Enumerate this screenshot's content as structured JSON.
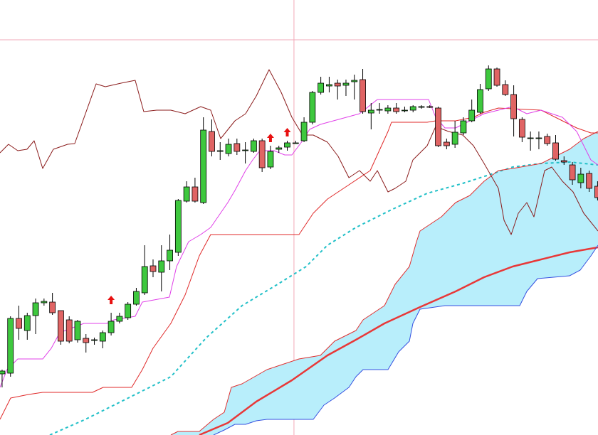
{
  "chart_data": {
    "type": "candlestick",
    "xlim": [
      -0.25,
      71.05
    ],
    "ylim": [
      0,
      612
    ],
    "candles": {
      "up_color": "#3ec83e",
      "down_color": "#e06464",
      "outline": "#000000",
      "open": [
        86,
        87,
        164,
        147,
        168,
        186,
        187,
        175,
        162,
        134,
        136,
        134,
        132,
        144,
        160,
        165,
        184,
        200,
        238,
        229,
        245,
        257,
        329,
        349,
        327,
        427,
        399,
        396,
        410,
        401,
        399,
        414,
        377,
        402,
        405,
        411,
        414,
        440,
        482,
        491,
        495,
        492,
        497,
        500,
        453,
        457,
        456,
        460,
        456,
        457,
        461,
        462,
        460,
        412,
        409,
        425,
        442,
        454,
        487,
        515,
        493,
        479,
        444,
        418,
        417,
        420,
        411,
        386,
        380,
        355,
        368,
        350
      ],
      "high": [
        92,
        167,
        182,
        172,
        192,
        192,
        200,
        175,
        167,
        162,
        142,
        137,
        147,
        172,
        172,
        187,
        207,
        267,
        247,
        267,
        282,
        332,
        357,
        362,
        447,
        444,
        412,
        417,
        417,
        412,
        417,
        417,
        407,
        407,
        414,
        414,
        447,
        484,
        504,
        504,
        500,
        500,
        507,
        515,
        467,
        467,
        464,
        467,
        462,
        464,
        464,
        464,
        462,
        417,
        442,
        447,
        472,
        494,
        520,
        517,
        499,
        492,
        447,
        427,
        427,
        424,
        422,
        392,
        384,
        376,
        372,
        357
      ],
      "low": [
        67,
        82,
        134,
        134,
        142,
        182,
        169,
        127,
        129,
        130,
        116,
        127,
        122,
        140,
        157,
        162,
        182,
        197,
        222,
        202,
        232,
        252,
        327,
        327,
        325,
        392,
        387,
        392,
        394,
        382,
        397,
        370,
        374,
        397,
        400,
        410,
        412,
        437,
        479,
        482,
        472,
        477,
        472,
        452,
        430,
        452,
        452,
        452,
        454,
        454,
        459,
        460,
        405,
        402,
        404,
        422,
        440,
        452,
        484,
        490,
        477,
        420,
        412,
        400,
        402,
        407,
        386,
        380,
        352,
        347,
        342,
        330
      ],
      "close": [
        90,
        164,
        150,
        168,
        186,
        188,
        172,
        132,
        132,
        160,
        130,
        134,
        144,
        160,
        167,
        184,
        202,
        237,
        230,
        245,
        260,
        330,
        349,
        329,
        429,
        399,
        400,
        409,
        399,
        401,
        414,
        376,
        399,
        404,
        411,
        411,
        440,
        482,
        495,
        493,
        491,
        495,
        499,
        455,
        457,
        458,
        460,
        455,
        457,
        462,
        462,
        461,
        407,
        407,
        426,
        442,
        457,
        486,
        515,
        492,
        479,
        445,
        419,
        418,
        418,
        410,
        388,
        384,
        359,
        367,
        347,
        334
      ]
    },
    "cloud": {
      "fill": "#b8eefb",
      "span_a": {
        "color": "#e03030",
        "width": 1,
        "x": [
          20.12,
          20.97,
          23.51,
          25.21,
          26.49,
          27.33,
          28.61,
          31.58,
          32.85,
          35.4,
          37.95,
          39.64,
          42.19,
          43.04,
          45.59,
          46.86,
          48.56,
          49.41,
          49.83,
          52.38,
          54.07,
          55.77,
          57.47,
          59.17,
          60.87,
          64.26,
          65.96,
          67.66,
          69.35,
          71.05
        ],
        "values": [
          0,
          5,
          5,
          22,
          32,
          67,
          72,
          92,
          97,
          107,
          112,
          132,
          147,
          162,
          182,
          212,
          237,
          272,
          287,
          307,
          327,
          337,
          357,
          372,
          375,
          382,
          392,
          402,
          417,
          427
        ]
      },
      "span_b": {
        "color": "#3550e0",
        "width": 1,
        "x": [
          25.21,
          26.49,
          27.76,
          29.03,
          30.31,
          31.58,
          37.1,
          38.37,
          39.64,
          41.35,
          42.19,
          43.04,
          46.01,
          47.28,
          48.56,
          48.98,
          49.83,
          52.8,
          61.72,
          62.56,
          63.84,
          67.66,
          68.93,
          70.2,
          71.05
        ],
        "values": [
          0,
          7,
          15,
          15,
          20,
          22,
          22,
          42,
          52,
          67,
          82,
          92,
          92,
          117,
          132,
          157,
          177,
          182,
          182,
          202,
          220,
          224,
          232,
          252,
          267
        ]
      }
    },
    "lines": [
      {
        "color": "#22c0c8",
        "width": 2,
        "dash": true,
        "x": [
          5.69,
          9.93,
          15.03,
          20.12,
          24.36,
          28.61,
          32.85,
          36.25,
          38.79,
          42.19,
          46.43,
          50.68,
          54.92,
          58.32,
          60.87,
          64.26,
          67.66,
          71.05
        ],
        "values": [
          0,
          22,
          52,
          82,
          137,
          182,
          212,
          237,
          267,
          292,
          317,
          340,
          354,
          367,
          377,
          382,
          384,
          380
        ]
      },
      {
        "color": "#e83838",
        "width": 2.5,
        "dash": false,
        "x": [
          23.51,
          26.91,
          30.31,
          34.55,
          38.79,
          42.19,
          45.59,
          49.83,
          54.07,
          57.47,
          60.87,
          64.26,
          67.66,
          71.05
        ],
        "values": [
          0,
          17,
          47,
          77,
          112,
          134,
          157,
          180,
          202,
          222,
          237,
          247,
          257,
          264
        ]
      },
      {
        "color": "#e02a2a",
        "width": 1,
        "dash": false,
        "x": [
          -0.25,
          1.02,
          3.14,
          4.84,
          10.78,
          12.05,
          15.45,
          16.72,
          17.99,
          20.12,
          21.82,
          23.51,
          24.87,
          35.4,
          37.1,
          38.8,
          41.35,
          43.89,
          46.01,
          46.43,
          50.68,
          51.7,
          54.07,
          56.2,
          57.47,
          59.17,
          64.26,
          66.81,
          68.51,
          70.2,
          71.05
        ],
        "values": [
          22,
          52,
          57,
          60,
          60,
          67,
          67,
          92,
          122,
          157,
          197,
          252,
          282,
          282,
          312,
          332,
          352,
          372,
          427,
          440,
          440,
          442,
          442,
          447,
          454,
          460,
          457,
          442,
          432,
          425,
          425
        ]
      },
      {
        "color": "#e040e8",
        "width": 1,
        "dash": false,
        "x": [
          -0.25,
          0.59,
          1.87,
          4.84,
          5.86,
          6.88,
          9.76,
          12.48,
          13.33,
          15.87,
          16.72,
          19.95,
          20.8,
          22.24,
          23.68,
          24.87,
          26.91,
          27.76,
          29.03,
          29.88,
          30.73,
          32.43,
          33.7,
          34.55,
          35.82,
          36.67,
          37.95,
          42.61,
          44.74,
          50.85,
          51.7,
          52.8,
          54.07,
          55.77,
          57.47,
          60.87,
          62.56,
          64.26,
          66.81,
          68.51,
          70.2,
          71.05
        ],
        "values": [
          67,
          92,
          107,
          107,
          122,
          144,
          157,
          157,
          162,
          167,
          187,
          194,
          237,
          272,
          282,
          292,
          327,
          344,
          372,
          387,
          400,
          400,
          394,
          394,
          414,
          430,
          437,
          452,
          472,
          472,
          447,
          432,
          432,
          442,
          452,
          462,
          452,
          457,
          447,
          427,
          387,
          380
        ]
      },
      {
        "color": "#8b1c1c",
        "width": 1,
        "dash": false,
        "x": [
          -0.25,
          0.76,
          1.87,
          2.97,
          3.82,
          4.84,
          6.11,
          7.81,
          8.66,
          11.21,
          12.31,
          14.18,
          15.87,
          16.89,
          18.42,
          20.12,
          21.82,
          23.68,
          24.87,
          26.06,
          27.76,
          29.03,
          30.31,
          31.83,
          33.28,
          34.55,
          35.82,
          37.1,
          38.79,
          40.07,
          41.35,
          42.61,
          43.89,
          44.74,
          46.01,
          46.86,
          48.13,
          48.98,
          50.68,
          51.7,
          53.23,
          54.92,
          56.2,
          57.47,
          59.17,
          59.85,
          60.7,
          61.55,
          62.56,
          63.41,
          64.69,
          65.53,
          66.81,
          68.08,
          69.35,
          71.05
        ],
        "values": [
          397,
          409,
          400,
          402,
          414,
          375,
          402,
          409,
          410,
          494,
          490,
          495,
          499,
          455,
          457,
          457,
          452,
          462,
          457,
          417,
          442,
          452,
          477,
          514,
          482,
          447,
          422,
          422,
          412,
          392,
          362,
          372,
          357,
          372,
          342,
          347,
          357,
          387,
          407,
          434,
          427,
          422,
          407,
          382,
          347,
          302,
          282,
          312,
          327,
          307,
          372,
          377,
          357,
          342,
          312,
          287
        ]
      }
    ],
    "signals": {
      "color": "#e81010",
      "x": [
        13,
        32,
        34
      ],
      "values": [
        190,
        418,
        426
      ]
    },
    "crosshair": {
      "color": "#f2a8b8",
      "x": 34.8,
      "y": 556
    }
  }
}
